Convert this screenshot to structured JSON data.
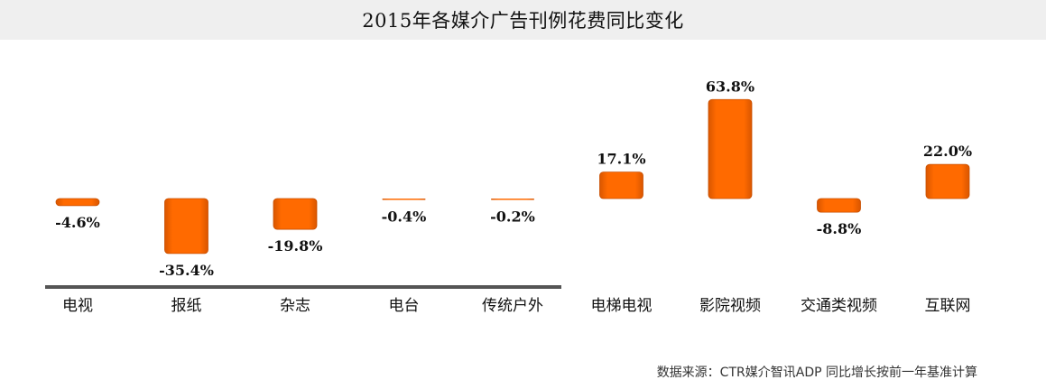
{
  "chart_data": {
    "type": "bar",
    "title": "2015年各媒介广告刊例花费同比变化",
    "categories": [
      "电视",
      "报纸",
      "杂志",
      "电台",
      "传统户外",
      "电梯电视",
      "影院视频",
      "交通类视频",
      "互联网"
    ],
    "series": [
      {
        "values": [
          -4.6,
          -35.4,
          -19.8,
          -0.4,
          -0.2,
          17.1,
          63.8,
          -8.8,
          22.0
        ]
      }
    ],
    "value_labels": [
      "-4.6%",
      "-35.4%",
      "-19.8%",
      "-0.4%",
      "-0.2%",
      "17.1%",
      "63.8%",
      "-8.8%",
      "22.0%"
    ],
    "unit": "%",
    "xlabel": "",
    "ylabel": "",
    "grid": false,
    "legend": "none",
    "colors": {
      "bar": "#FF6A00",
      "bar_edge": "#C84F00",
      "traditional_underline": "#555555"
    },
    "traditional_group_count": 5
  },
  "source_note": "数据来源：CTR媒介智讯ADP   同比增长按前一年基准计算"
}
